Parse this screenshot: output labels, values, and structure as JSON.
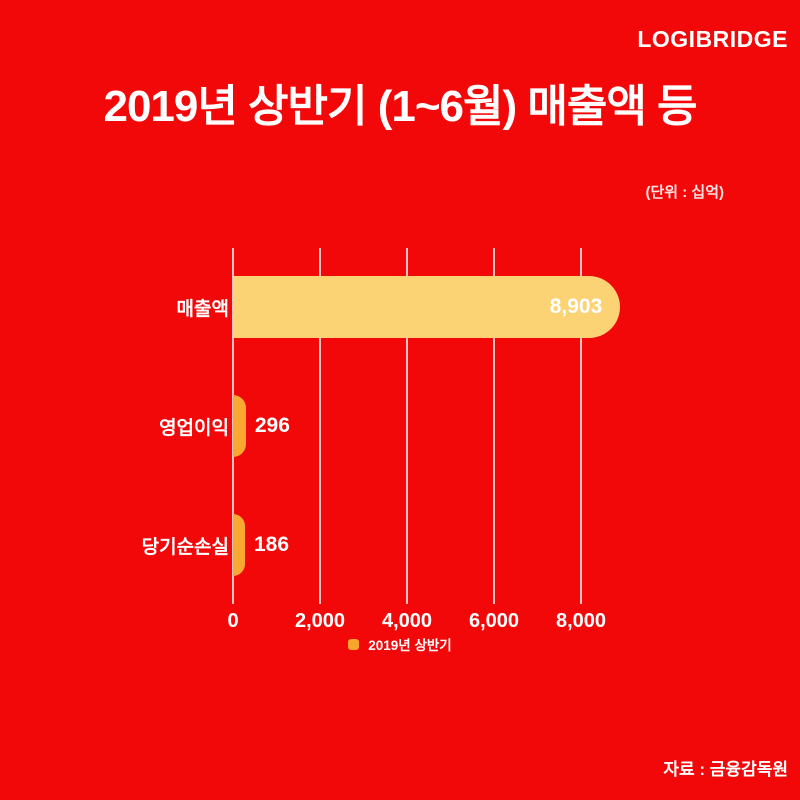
{
  "brand": {
    "logo": "LOGIBRIDGE"
  },
  "header": {
    "title": "2019년 상반기 (1~6월) 매출액 등",
    "unit_note": "(단위 : 십억)"
  },
  "legend": {
    "label": "2019년 상반기",
    "marker_color": "#f9a52c"
  },
  "footer": {
    "source": "자료 : 금융감독원"
  },
  "colors": {
    "background": "#f20808",
    "text": "#ffffff",
    "gridline": "rgba(255,255,255,0.75)",
    "bar_large": "#fbd374",
    "bar_small": "#f9a832"
  },
  "chart_data": {
    "type": "bar",
    "orientation": "horizontal",
    "title": "2019년 상반기 (1~6월) 매출액 등",
    "unit": "십억",
    "series_name": "2019년 상반기",
    "categories": [
      "매출액",
      "영업이익",
      "당기순손실"
    ],
    "values": [
      8903,
      296,
      186
    ],
    "value_labels": [
      "8,903",
      "296",
      "186"
    ],
    "value_label_placement": [
      "inside",
      "outside",
      "outside"
    ],
    "bar_colors": [
      "#fbd374",
      "#f9a832",
      "#f9a832"
    ],
    "x_ticks": [
      0,
      2000,
      4000,
      6000,
      8000
    ],
    "x_tick_labels": [
      "0",
      "2,000",
      "4,000",
      "6,000",
      "8,000"
    ],
    "xlim": [
      0,
      10800
    ],
    "grid": true,
    "legend_position": "bottom",
    "source": "자료 : 금융감독원"
  }
}
